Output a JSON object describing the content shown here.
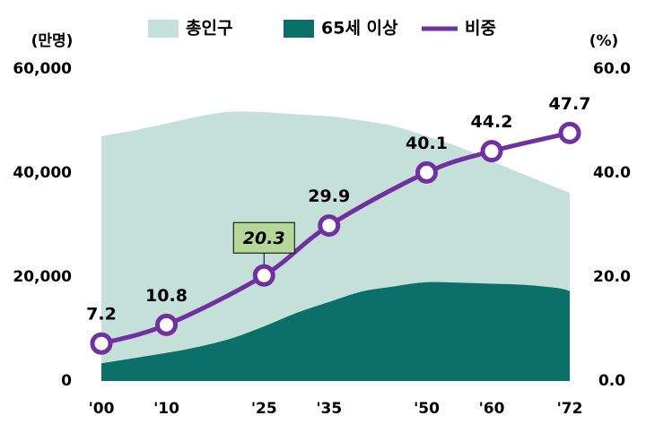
{
  "chart_data": {
    "type": "area_line",
    "y_label": "(만명)",
    "y2_label": "(%)",
    "xlim": [
      0,
      72
    ],
    "xticks": [
      {
        "value": 0,
        "label": "'00"
      },
      {
        "value": 10,
        "label": "'10"
      },
      {
        "value": 25,
        "label": "'25"
      },
      {
        "value": 35,
        "label": "'35"
      },
      {
        "value": 50,
        "label": "'50"
      },
      {
        "value": 60,
        "label": "'60"
      },
      {
        "value": 72,
        "label": "'72"
      }
    ],
    "ylim": [
      0,
      60000
    ],
    "yticks": [
      0,
      {
        "value": 20000,
        "label": "20,000"
      },
      {
        "value": 40000,
        "label": "40,000"
      },
      {
        "value": 60000,
        "label": "60,000"
      }
    ],
    "y2lim": [
      0,
      60
    ],
    "y2ticks": [
      {
        "value": 0,
        "label": "0.0"
      },
      {
        "value": 20,
        "label": "20.0"
      },
      {
        "value": 40,
        "label": "40.0"
      },
      {
        "value": 60,
        "label": "60.0"
      }
    ],
    "series": [
      {
        "name": "총인구",
        "type": "area",
        "color": "#c5e0d9",
        "x": [
          0,
          5,
          10,
          15,
          20,
          25,
          30,
          35,
          40,
          45,
          50,
          55,
          60,
          65,
          70,
          72
        ],
        "values": [
          47100,
          48200,
          49500,
          50900,
          51800,
          51700,
          51300,
          50900,
          50100,
          49000,
          47100,
          45000,
          42300,
          39700,
          37200,
          36200
        ]
      },
      {
        "name": "65세 이상",
        "type": "area",
        "color": "#0b7168",
        "x": [
          0,
          5,
          10,
          15,
          20,
          25,
          30,
          35,
          40,
          45,
          50,
          55,
          60,
          65,
          70,
          72
        ],
        "values": [
          3400,
          4400,
          5400,
          6600,
          8200,
          10500,
          13100,
          15200,
          17200,
          18200,
          19000,
          18900,
          18700,
          18500,
          17900,
          17300
        ]
      },
      {
        "name": "비중",
        "type": "line",
        "axis": "y2",
        "color": "#7030a0",
        "highlight": 2,
        "x": [
          0,
          10,
          25,
          35,
          50,
          60,
          72
        ],
        "values": [
          7.2,
          10.8,
          20.3,
          29.9,
          40.1,
          44.2,
          47.7
        ]
      }
    ]
  }
}
